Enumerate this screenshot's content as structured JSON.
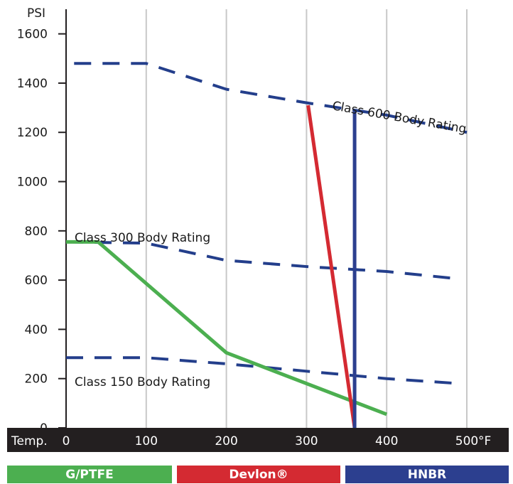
{
  "chart_data": {
    "type": "line",
    "ylabel": "PSI",
    "xlabel": "Temp.",
    "x_unit": "°F",
    "xlim": [
      0,
      500
    ],
    "ylim": [
      0,
      1700
    ],
    "x_ticks": [
      "0",
      "100",
      "200",
      "300",
      "400",
      "500"
    ],
    "y_ticks": [
      "0",
      "200",
      "400",
      "600",
      "800",
      "1000",
      "1200",
      "1400",
      "1600"
    ],
    "grid": "vertical",
    "annotations": [
      "Class 600 Body Rating",
      "Class 300 Body Rating",
      "Class 150 Body Rating"
    ],
    "rating_series": [
      {
        "name": "Class 600 Body Rating",
        "color": "#233e8b",
        "style": "dashed",
        "x": [
          10,
          100,
          200,
          300,
          400,
          500
        ],
        "y": [
          1480,
          1480,
          1375,
          1320,
          1270,
          1200
        ]
      },
      {
        "name": "Class 300 Body Rating",
        "color": "#233e8b",
        "style": "dashed",
        "x": [
          0,
          100,
          200,
          300,
          400,
          490
        ],
        "y": [
          755,
          750,
          680,
          655,
          635,
          605
        ]
      },
      {
        "name": "Class 150 Body Rating",
        "color": "#233e8b",
        "style": "dashed",
        "x": [
          0,
          100,
          200,
          300,
          400,
          490
        ],
        "y": [
          285,
          285,
          260,
          230,
          200,
          180
        ]
      }
    ],
    "series": [
      {
        "name": "G/PTFE",
        "color": "#4caf50",
        "x": [
          0,
          40,
          200,
          400
        ],
        "y": [
          755,
          755,
          305,
          55
        ]
      },
      {
        "name": "Devlon®",
        "color": "#d42a32",
        "x": [
          302,
          360
        ],
        "y": [
          1310,
          0
        ]
      },
      {
        "name": "HNBR",
        "color": "#2c3f8f",
        "x": [
          360,
          360
        ],
        "y": [
          1285,
          0
        ]
      }
    ]
  }
}
